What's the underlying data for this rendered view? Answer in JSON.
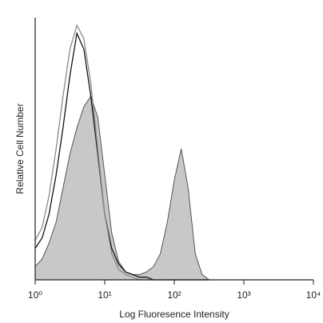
{
  "chart_data": {
    "type": "histogram",
    "x_label": "Log Fluoresence Intensity",
    "y_label": "Relative Cell Number",
    "log_x": true,
    "xlim": [
      1,
      10000
    ],
    "xticks": [
      {
        "value": 1,
        "label": "10⁰"
      },
      {
        "value": 10,
        "label": "10¹"
      },
      {
        "value": 100,
        "label": "10²"
      },
      {
        "value": 1000,
        "label": "10³"
      },
      {
        "value": 10000,
        "label": "10⁴"
      }
    ],
    "ylim": [
      0,
      100
    ],
    "x": [
      1,
      1.26,
      1.58,
      2,
      2.51,
      3.16,
      3.98,
      5.01,
      6.31,
      7.94,
      10,
      12.6,
      15.8,
      20,
      25.1,
      31.6,
      39.8,
      50.1,
      63.1,
      79.4,
      100,
      126,
      158,
      200,
      251,
      316
    ],
    "series": [
      {
        "color": "#c8c8c8",
        "filled": true,
        "values": [
          5,
          8,
          14,
          22,
          35,
          48,
          58,
          66,
          70,
          62,
          40,
          18,
          7,
          3,
          2,
          2,
          3,
          5,
          10,
          22,
          38,
          50,
          35,
          10,
          2,
          0
        ]
      },
      {
        "color": "#111111",
        "filled": false,
        "values": [
          12,
          16,
          25,
          40,
          58,
          78,
          94,
          88,
          70,
          48,
          25,
          12,
          6,
          3,
          2,
          1,
          1,
          0,
          0,
          0,
          0,
          0,
          0,
          0,
          0,
          0
        ]
      },
      {
        "color": "#8a8a8a",
        "filled": false,
        "values": [
          15,
          20,
          32,
          50,
          70,
          88,
          97,
          92,
          75,
          50,
          25,
          10,
          4,
          2,
          1,
          0,
          0,
          0,
          0,
          0,
          0,
          0,
          0,
          0,
          0,
          0
        ]
      }
    ]
  }
}
